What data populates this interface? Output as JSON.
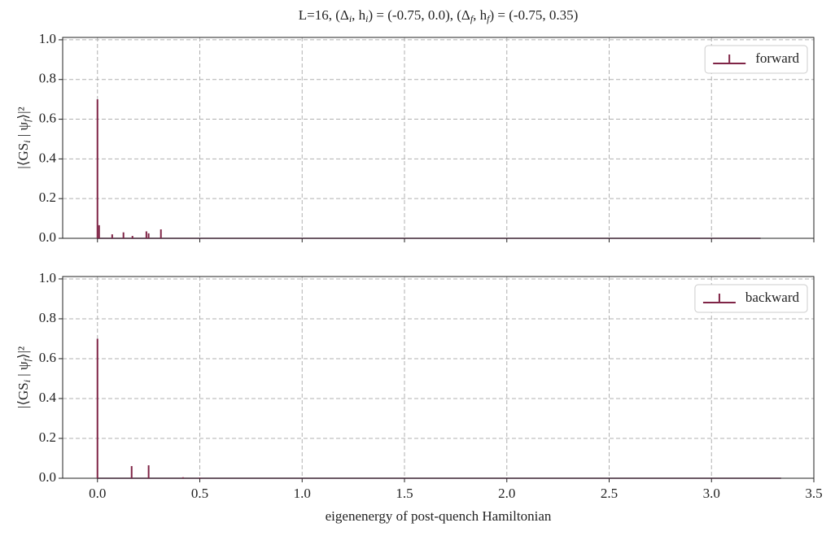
{
  "chart_data": [
    {
      "type": "stem",
      "title": [
        "L=16,     (Δ",
        "i",
        ", h",
        "i",
        ") = (-0.75, 0.0),  (Δ",
        "f",
        ", h",
        "f",
        ") = (-0.75, 0.35)"
      ],
      "ylabel": [
        "|⟨GS",
        "i",
        " | ψ",
        "f",
        "⟩|²"
      ],
      "series": [
        {
          "name": "forward",
          "color": "#7f2446",
          "x": [
            0.0,
            0.008,
            0.072,
            0.127,
            0.171,
            0.239,
            0.25,
            0.31,
            3.24
          ],
          "values": [
            0.7,
            0.066,
            0.02,
            0.03,
            0.012,
            0.035,
            0.025,
            0.045,
            0.0
          ]
        }
      ],
      "xlim": [
        -0.17,
        3.5
      ],
      "ylim": [
        0,
        1.012
      ],
      "xticks": [
        {
          "value": 0,
          "label": "0.0"
        },
        0.5,
        {
          "value": 1,
          "label": "1.0"
        },
        1.5,
        {
          "value": 2,
          "label": "2.0"
        },
        2.5,
        {
          "value": 3,
          "label": "3.0"
        },
        3.5
      ],
      "show_xticklabels": false,
      "yticks": [
        {
          "value": 0,
          "label": "0.0"
        },
        0.2,
        0.4,
        0.6,
        0.8,
        {
          "value": 1,
          "label": "1.0"
        }
      ],
      "grid": true,
      "legend": "upper right"
    },
    {
      "type": "stem",
      "xlabel": "eigenenergy of post-quench Hamiltonian",
      "ylabel": [
        "|⟨GS",
        "i",
        " | ψ",
        "f",
        "⟩|²"
      ],
      "series": [
        {
          "name": "backward",
          "color": "#7f2446",
          "x": [
            0.0,
            0.167,
            0.25,
            0.418,
            0.5,
            3.34
          ],
          "values": [
            0.7,
            0.061,
            0.065,
            0.005,
            0.003,
            0.0
          ]
        }
      ],
      "xlim": [
        -0.17,
        3.5
      ],
      "ylim": [
        0,
        1.012
      ],
      "xticks": [
        {
          "value": 0,
          "label": "0.0"
        },
        0.5,
        {
          "value": 1,
          "label": "1.0"
        },
        1.5,
        {
          "value": 2,
          "label": "2.0"
        },
        2.5,
        {
          "value": 3,
          "label": "3.0"
        },
        3.5
      ],
      "show_xticklabels": true,
      "yticks": [
        {
          "value": 0,
          "label": "0.0"
        },
        0.2,
        0.4,
        0.6,
        0.8,
        {
          "value": 1,
          "label": "1.0"
        }
      ],
      "grid": true,
      "legend": "upper right"
    }
  ]
}
